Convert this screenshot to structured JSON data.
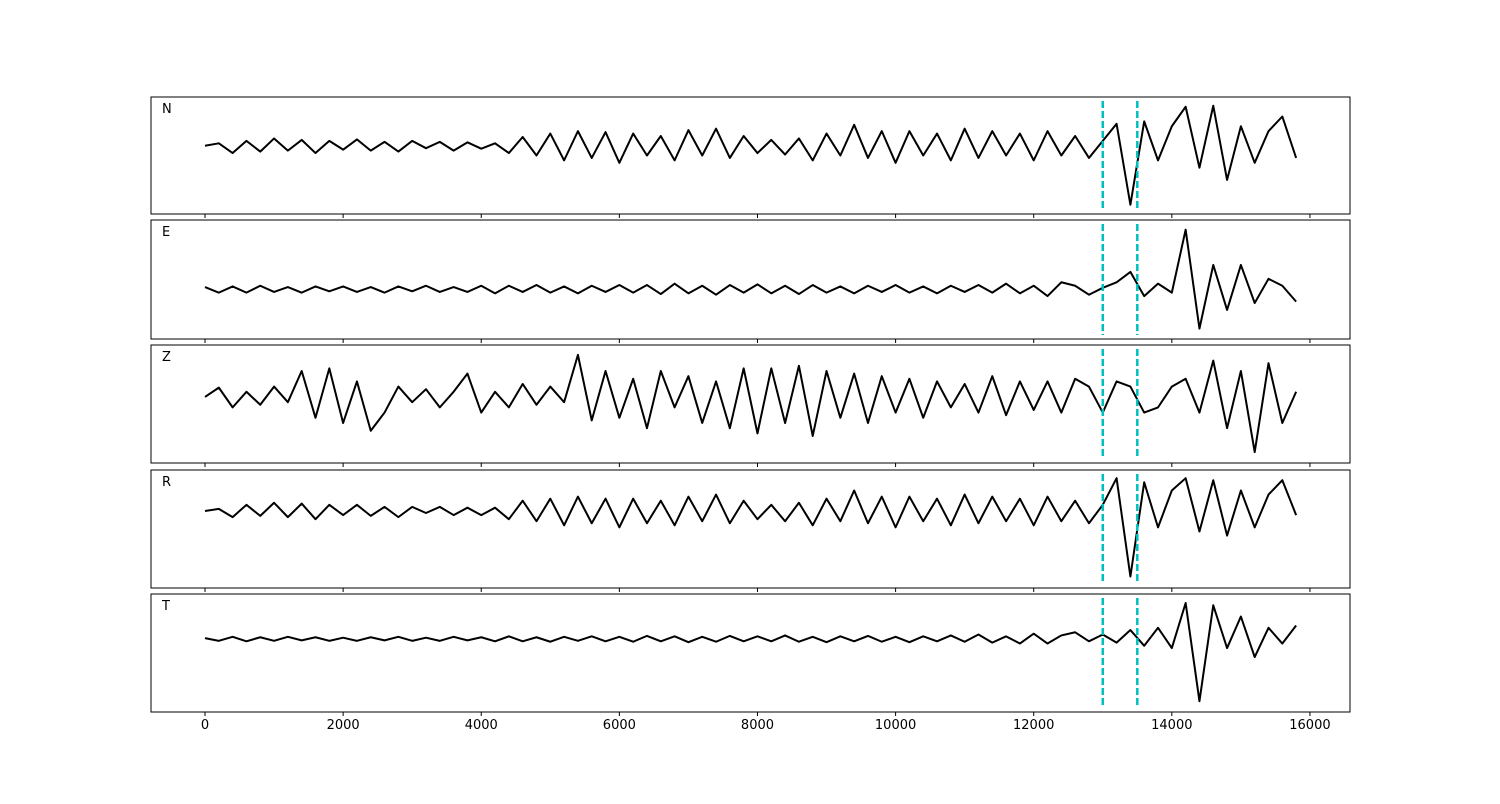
{
  "chart_data": {
    "type": "line",
    "x": [
      0,
      200,
      400,
      600,
      800,
      1000,
      1200,
      1400,
      1600,
      1800,
      2000,
      2200,
      2400,
      2600,
      2800,
      3000,
      3200,
      3400,
      3600,
      3800,
      4000,
      4200,
      4400,
      4600,
      4800,
      5000,
      5200,
      5400,
      5600,
      5800,
      6000,
      6200,
      6400,
      6600,
      6800,
      7000,
      7200,
      7400,
      7600,
      7800,
      8000,
      8200,
      8400,
      8600,
      8800,
      9000,
      9200,
      9400,
      9600,
      9800,
      10000,
      10200,
      10400,
      10600,
      10800,
      11000,
      11200,
      11400,
      11600,
      11800,
      12000,
      12200,
      12400,
      12600,
      12800,
      13000,
      13200,
      13400,
      13600,
      13800,
      14000,
      14200,
      14400,
      14600,
      14800,
      15000,
      15200,
      15400,
      15600,
      15800
    ],
    "xlim": [
      -782,
      16580
    ],
    "xticks": [
      0,
      2000,
      4000,
      6000,
      8000,
      10000,
      12000,
      14000,
      16000
    ],
    "vlines": [
      13000,
      13500
    ],
    "vline_color": "#00bfbf",
    "series": [
      {
        "name": "N",
        "color": "#000000",
        "ylim": [
          -1.4,
          1.0
        ],
        "values": [
          0,
          0.05,
          -0.15,
          0.1,
          -0.12,
          0.15,
          -0.1,
          0.12,
          -0.15,
          0.1,
          -0.08,
          0.13,
          -0.1,
          0.08,
          -0.12,
          0.1,
          -0.05,
          0.08,
          -0.1,
          0.07,
          -0.06,
          0.05,
          -0.15,
          0.18,
          -0.2,
          0.25,
          -0.3,
          0.3,
          -0.25,
          0.28,
          -0.35,
          0.25,
          -0.2,
          0.2,
          -0.3,
          0.32,
          -0.2,
          0.35,
          -0.25,
          0.2,
          -0.15,
          0.12,
          -0.18,
          0.15,
          -0.3,
          0.25,
          -0.2,
          0.43,
          -0.25,
          0.3,
          -0.35,
          0.3,
          -0.2,
          0.25,
          -0.3,
          0.35,
          -0.25,
          0.3,
          -0.2,
          0.25,
          -0.3,
          0.3,
          -0.2,
          0.2,
          -0.25,
          0.1,
          0.45,
          -1.21,
          0.5,
          -0.3,
          0.4,
          0.8,
          -0.45,
          0.82,
          -0.7,
          0.4,
          -0.35,
          0.3,
          0.6,
          -0.25
        ]
      },
      {
        "name": "E",
        "color": "#000000",
        "ylim": [
          -0.72,
          1.0
        ],
        "values": [
          0.03,
          -0.05,
          0.04,
          -0.05,
          0.05,
          -0.04,
          0.03,
          -0.05,
          0.04,
          -0.03,
          0.04,
          -0.04,
          0.03,
          -0.05,
          0.04,
          -0.03,
          0.05,
          -0.04,
          0.03,
          -0.04,
          0.05,
          -0.06,
          0.05,
          -0.04,
          0.06,
          -0.05,
          0.04,
          -0.06,
          0.05,
          -0.04,
          0.06,
          -0.05,
          0.06,
          -0.07,
          0.08,
          -0.06,
          0.05,
          -0.08,
          0.06,
          -0.05,
          0.07,
          -0.06,
          0.05,
          -0.07,
          0.06,
          -0.05,
          0.04,
          -0.06,
          0.05,
          -0.04,
          0.06,
          -0.05,
          0.04,
          -0.06,
          0.05,
          -0.04,
          0.06,
          -0.05,
          0.08,
          -0.06,
          0.05,
          -0.1,
          0.1,
          0.05,
          -0.08,
          0.02,
          0.1,
          0.25,
          -0.1,
          0.08,
          -0.05,
          0.86,
          -0.57,
          0.35,
          -0.3,
          0.35,
          -0.2,
          0.15,
          0.05,
          -0.18
        ]
      },
      {
        "name": "Z",
        "color": "#000000",
        "ylim": [
          -1.27,
          1.0
        ],
        "values": [
          0,
          0.18,
          -0.2,
          0.1,
          -0.15,
          0.2,
          -0.1,
          0.5,
          -0.4,
          0.55,
          -0.5,
          0.3,
          -0.65,
          -0.3,
          0.2,
          -0.1,
          0.15,
          -0.2,
          0.1,
          0.45,
          -0.3,
          0.1,
          -0.2,
          0.25,
          -0.15,
          0.2,
          -0.1,
          0.81,
          -0.45,
          0.5,
          -0.4,
          0.35,
          -0.6,
          0.5,
          -0.2,
          0.4,
          -0.5,
          0.3,
          -0.6,
          0.55,
          -0.7,
          0.55,
          -0.5,
          0.6,
          -0.75,
          0.5,
          -0.4,
          0.45,
          -0.5,
          0.4,
          -0.3,
          0.35,
          -0.4,
          0.3,
          -0.2,
          0.25,
          -0.3,
          0.4,
          -0.35,
          0.3,
          -0.25,
          0.3,
          -0.3,
          0.35,
          0.2,
          -0.3,
          0.3,
          0.2,
          -0.3,
          -0.2,
          0.2,
          0.35,
          -0.3,
          0.7,
          -0.6,
          0.5,
          -1.06,
          0.65,
          -0.5,
          0.1
        ]
      },
      {
        "name": "R",
        "color": "#000000",
        "ylim": [
          -1.88,
          1.0
        ],
        "values": [
          0,
          0.05,
          -0.15,
          0.15,
          -0.12,
          0.2,
          -0.15,
          0.18,
          -0.2,
          0.15,
          -0.1,
          0.15,
          -0.12,
          0.1,
          -0.15,
          0.1,
          -0.05,
          0.1,
          -0.1,
          0.08,
          -0.1,
          0.08,
          -0.2,
          0.25,
          -0.25,
          0.3,
          -0.35,
          0.35,
          -0.3,
          0.3,
          -0.4,
          0.3,
          -0.3,
          0.25,
          -0.35,
          0.35,
          -0.25,
          0.4,
          -0.3,
          0.25,
          -0.2,
          0.15,
          -0.25,
          0.2,
          -0.35,
          0.3,
          -0.25,
          0.5,
          -0.3,
          0.35,
          -0.4,
          0.35,
          -0.25,
          0.3,
          -0.35,
          0.4,
          -0.3,
          0.35,
          -0.25,
          0.3,
          -0.35,
          0.35,
          -0.25,
          0.25,
          -0.3,
          0.15,
          0.8,
          -1.6,
          0.7,
          -0.4,
          0.5,
          0.8,
          -0.5,
          0.75,
          -0.6,
          0.5,
          -0.4,
          0.4,
          0.75,
          -0.1
        ]
      },
      {
        "name": "T",
        "color": "#000000",
        "ylim": [
          -1.62,
          1.0
        ],
        "values": [
          0.02,
          -0.04,
          0.05,
          -0.05,
          0.04,
          -0.04,
          0.05,
          -0.03,
          0.04,
          -0.04,
          0.03,
          -0.04,
          0.04,
          -0.03,
          0.05,
          -0.04,
          0.03,
          -0.04,
          0.05,
          -0.03,
          0.04,
          -0.05,
          0.06,
          -0.05,
          0.04,
          -0.06,
          0.05,
          -0.04,
          0.06,
          -0.05,
          0.05,
          -0.06,
          0.07,
          -0.05,
          0.06,
          -0.07,
          0.05,
          -0.06,
          0.07,
          -0.05,
          0.06,
          -0.05,
          0.08,
          -0.06,
          0.05,
          -0.07,
          0.06,
          -0.05,
          0.07,
          -0.06,
          0.05,
          -0.07,
          0.06,
          -0.05,
          0.08,
          -0.06,
          0.1,
          -0.08,
          0.06,
          -0.1,
          0.12,
          -0.1,
          0.08,
          0.15,
          -0.05,
          0.1,
          -0.08,
          0.2,
          -0.15,
          0.25,
          -0.2,
          0.8,
          -1.38,
          0.75,
          -0.2,
          0.5,
          -0.4,
          0.25,
          -0.1,
          0.3
        ]
      }
    ]
  }
}
